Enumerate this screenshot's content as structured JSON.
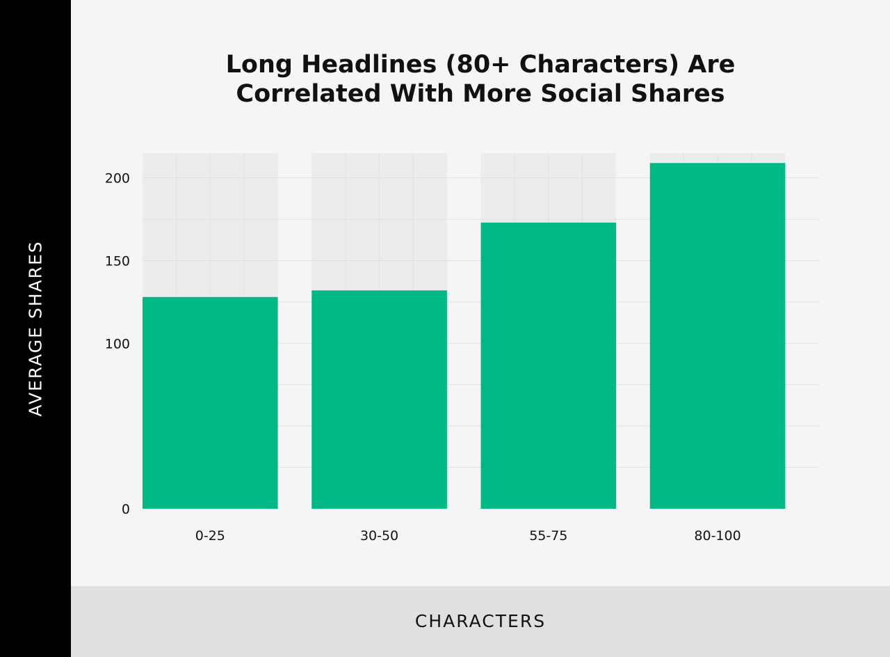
{
  "chart_data": {
    "type": "bar",
    "title_lines": [
      "Long Headlines (80+ Characters) Are",
      "Correlated With More Social Shares"
    ],
    "xlabel": "CHARACTERS",
    "ylabel": "AVERAGE SHARES",
    "categories": [
      "0-25",
      "30-50",
      "55-75",
      "80-100"
    ],
    "values": [
      128,
      132,
      173,
      209
    ],
    "ylim": [
      0,
      215
    ],
    "yticks": [
      0,
      100,
      150,
      200
    ],
    "grid": true,
    "bar_color": "#00b884",
    "grid_band_color": "#ececec",
    "grid_line_color": "#e0e0e0"
  }
}
